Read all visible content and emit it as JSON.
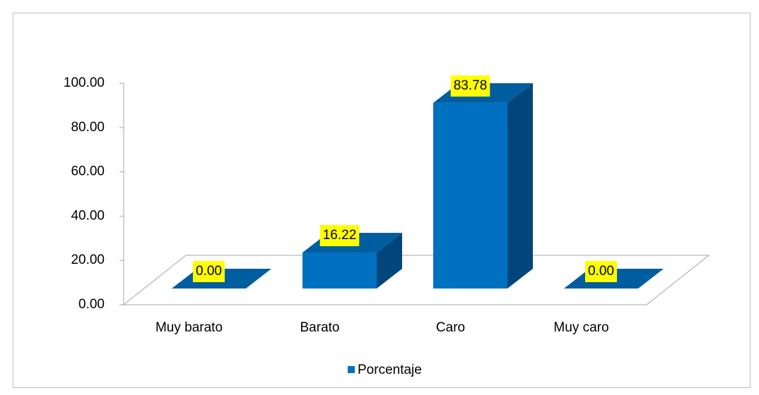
{
  "chart_data": {
    "type": "bar3d",
    "categories": [
      "Muy barato",
      "Barato",
      "Caro",
      "Muy caro"
    ],
    "series": [
      {
        "name": "Porcentaje",
        "color": "#0070c0",
        "values": [
          0,
          16.22,
          83.78,
          0
        ],
        "value_labels": [
          "0.00",
          "16.22",
          "83.78",
          "0.00"
        ]
      }
    ],
    "ylim": [
      0,
      100
    ],
    "yticks": [
      {
        "value": 0,
        "label": "0.00"
      },
      {
        "value": 20,
        "label": "20.00"
      },
      {
        "value": 40,
        "label": "40.00"
      },
      {
        "value": 60,
        "label": "60.00"
      },
      {
        "value": 80,
        "label": "80.00"
      },
      {
        "value": 100,
        "label": "100.00"
      }
    ],
    "legend": "bottom"
  }
}
